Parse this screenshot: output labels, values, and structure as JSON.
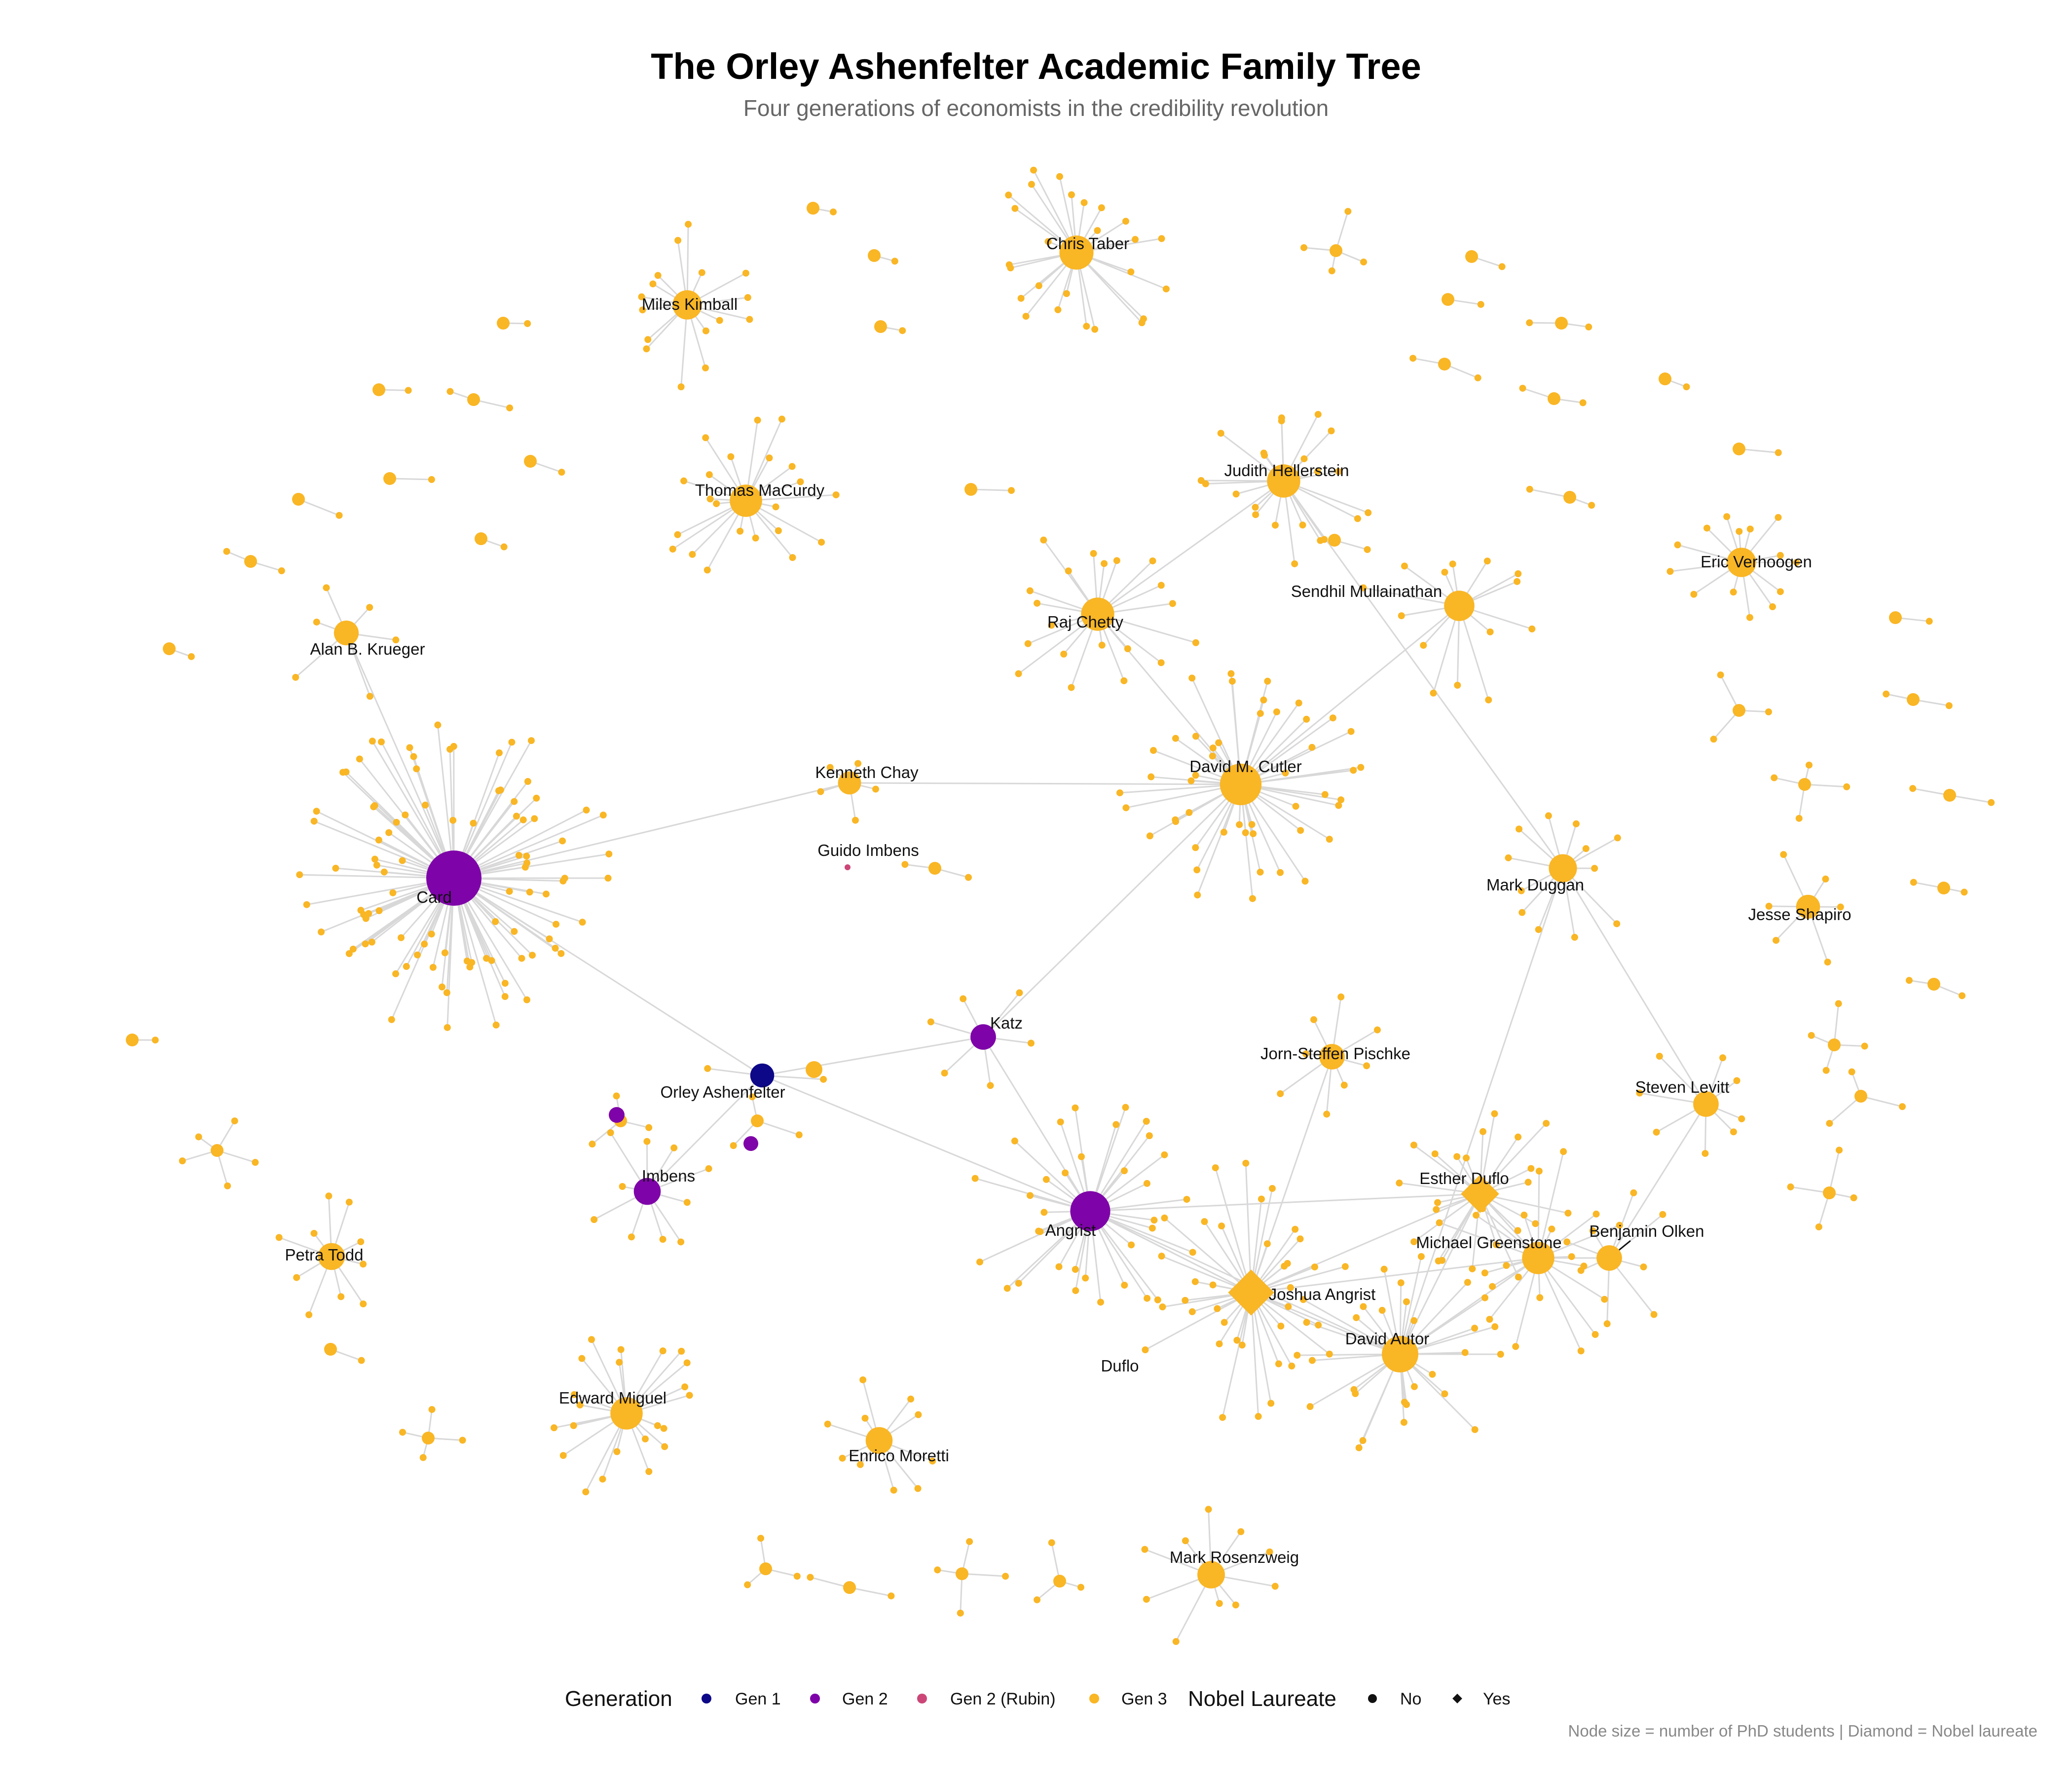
{
  "header": {
    "title": "The Orley Ashenfelter Academic Family Tree",
    "subtitle": "Four generations of economists in the credibility revolution"
  },
  "colors": {
    "gen1": "#0d0887",
    "gen2": "#7e03a8",
    "gen2_rubin": "#cc4778",
    "gen3": "#f9b625",
    "edge": "#d8d8d8"
  },
  "legend": {
    "generation_title": "Generation",
    "gen1": "Gen 1",
    "gen2": "Gen 2",
    "gen2_rubin": "Gen 2 (Rubin)",
    "gen3": "Gen 3",
    "nobel_title": "Nobel Laureate",
    "no": "No",
    "yes": "Yes"
  },
  "caption": "Node size = number of PhD students | Diamond = Nobel laureate",
  "labels": {
    "card": "Card",
    "orley": "Orley Ashenfelter",
    "imbens": "Imbens",
    "katz": "Katz",
    "angrist": "Angrist",
    "guido": "Guido Imbens",
    "krueger": "Alan B. Krueger",
    "chay": "Kenneth Chay",
    "cutler": "David M. Cutler",
    "chetty": "Raj Chetty",
    "hellerstein": "Judith Hellerstein",
    "mullainathan": "Sendhil Mullainathan",
    "verhoogen": "Eric Verhoogen",
    "duggan": "Mark Duggan",
    "shapiro": "Jesse Shapiro",
    "levitt": "Steven Levitt",
    "pischke": "Jorn-Steffen Pischke",
    "esther": "Esther Duflo",
    "greenstone": "Michael Greenstone",
    "olken": "Benjamin Olken",
    "joshua": "Joshua Angrist",
    "autor": "David Autor",
    "duflo": "Duflo",
    "miguel": "Edward Miguel",
    "moretti": "Enrico Moretti",
    "rosenzweig": "Mark Rosenzweig",
    "todd": "Petra Todd",
    "macurdy": "Thomas MaCurdy",
    "kimball": "Miles Kimball",
    "taber": "Chris Taber"
  },
  "nodes": [
    {
      "id": "orley",
      "gen": 1,
      "students": 6,
      "nobel": false
    },
    {
      "id": "card",
      "gen": 2,
      "students": 100,
      "nobel": false
    },
    {
      "id": "angrist",
      "gen": 2,
      "students": 40,
      "nobel": false
    },
    {
      "id": "katz",
      "gen": 2,
      "students": 8,
      "nobel": false
    },
    {
      "id": "imbens",
      "gen": 2,
      "students": 10,
      "nobel": false
    },
    {
      "id": "guido",
      "gen": "2r",
      "students": 0,
      "nobel": false
    },
    {
      "id": "joshua",
      "gen": 3,
      "students": 40,
      "nobel": true
    },
    {
      "id": "esther",
      "gen": 3,
      "students": 22,
      "nobel": true
    },
    {
      "id": "cutler",
      "gen": 3,
      "students": 45,
      "nobel": false
    },
    {
      "id": "autor",
      "gen": 3,
      "students": 30,
      "nobel": false
    },
    {
      "id": "greenstone",
      "gen": 3,
      "students": 20,
      "nobel": false
    },
    {
      "id": "chetty",
      "gen": 3,
      "students": 22,
      "nobel": false
    },
    {
      "id": "hellerstein",
      "gen": 3,
      "students": 22,
      "nobel": false
    },
    {
      "id": "mullainathan",
      "gen": 3,
      "students": 16,
      "nobel": false
    },
    {
      "id": "macurdy",
      "gen": 3,
      "students": 20,
      "nobel": false
    },
    {
      "id": "taber",
      "gen": 3,
      "students": 24,
      "nobel": false
    },
    {
      "id": "kimball",
      "gen": 3,
      "students": 14,
      "nobel": false
    },
    {
      "id": "miguel",
      "gen": 3,
      "students": 20,
      "nobel": false
    },
    {
      "id": "verhoogen",
      "gen": 3,
      "students": 14,
      "nobel": false
    },
    {
      "id": "duggan",
      "gen": 3,
      "students": 12,
      "nobel": false
    },
    {
      "id": "levitt",
      "gen": 3,
      "students": 8,
      "nobel": false
    },
    {
      "id": "olken",
      "gen": 3,
      "students": 8,
      "nobel": false
    },
    {
      "id": "krueger",
      "gen": 3,
      "students": 7,
      "nobel": false
    },
    {
      "id": "chay",
      "gen": 3,
      "students": 5,
      "nobel": false
    },
    {
      "id": "moretti",
      "gen": 3,
      "students": 10,
      "nobel": false
    },
    {
      "id": "rosenzweig",
      "gen": 3,
      "students": 11,
      "nobel": false
    },
    {
      "id": "todd",
      "gen": 3,
      "students": 10,
      "nobel": false
    },
    {
      "id": "shapiro",
      "gen": 3,
      "students": 6,
      "nobel": false
    },
    {
      "id": "pischke",
      "gen": 3,
      "students": 8,
      "nobel": false
    }
  ]
}
